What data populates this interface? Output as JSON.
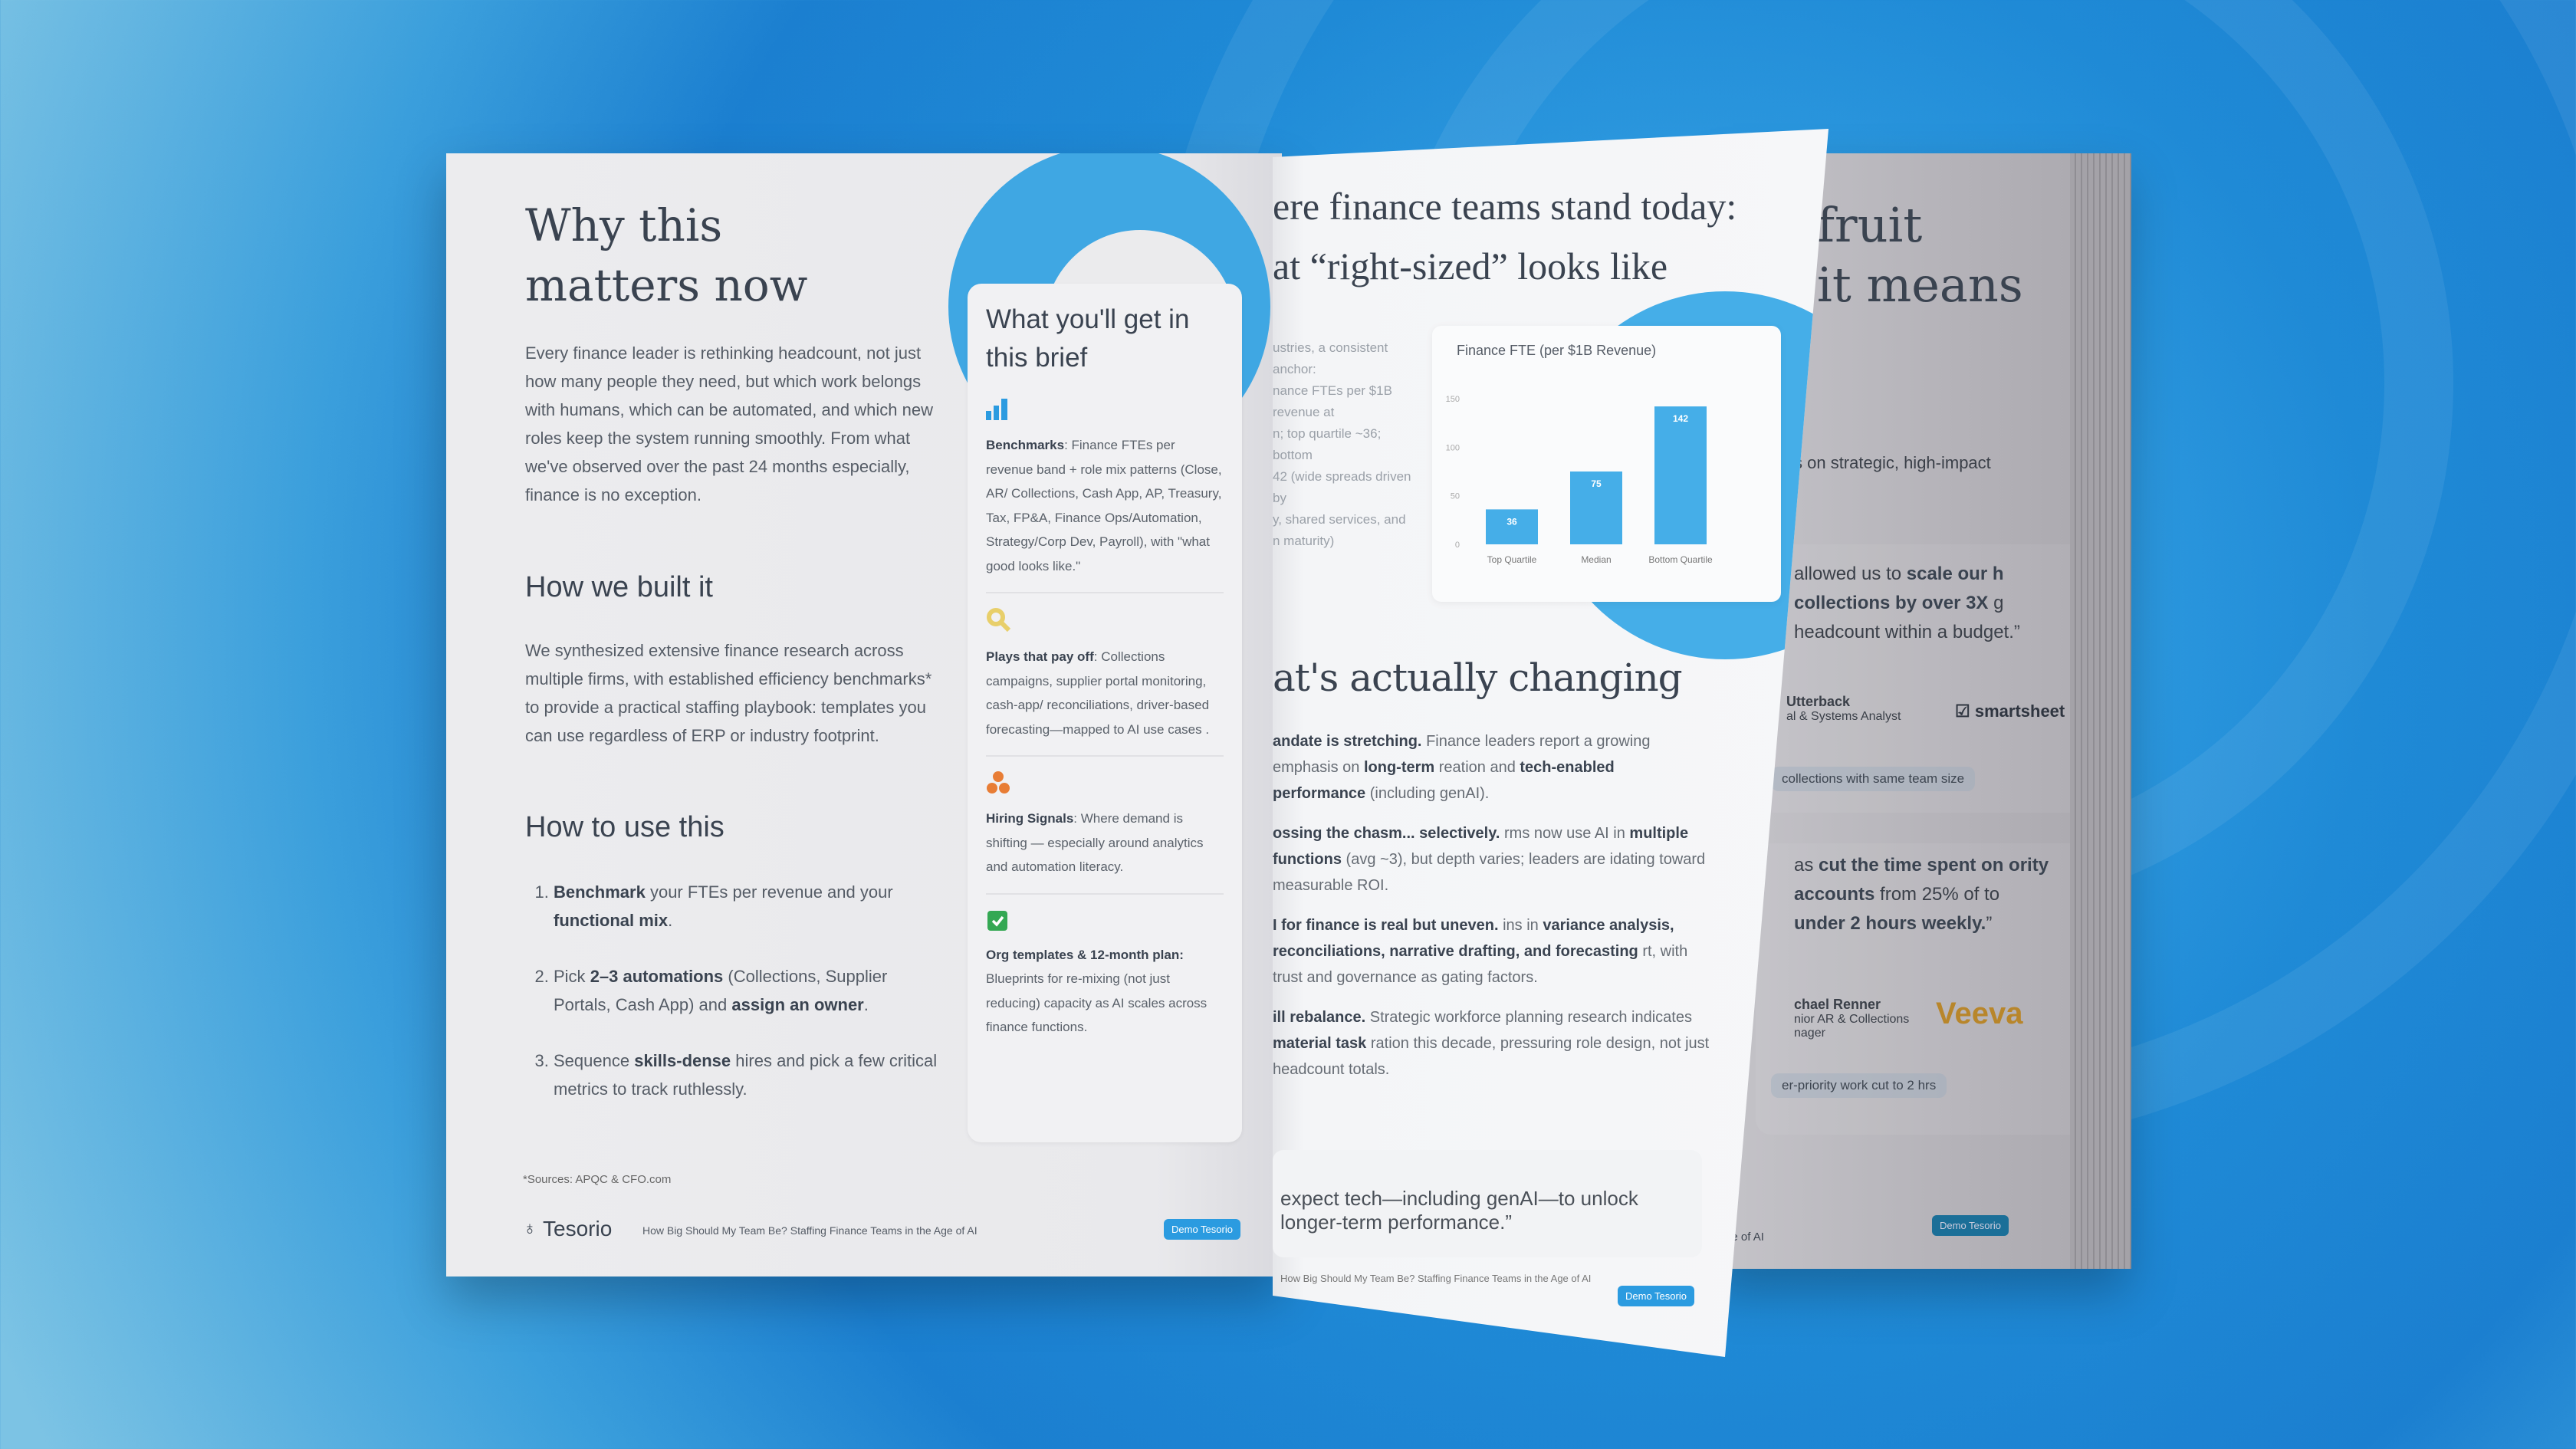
{
  "left_page": {
    "title": [
      "Why this",
      "matters now"
    ],
    "intro": "Every finance leader is rethinking headcount, not just how many people they need, but which work belongs with humans, which can be automated, and which new roles keep the system running smoothly. From what we've observed over the past 24 months especially, finance is no exception.",
    "built_heading": "How we built it",
    "built_body": "We synthesized extensive finance research across multiple firms, with established efficiency benchmarks* to provide a practical staffing playbook: templates you can use regardless of ERP or industry footprint.",
    "use_heading": "How to use this",
    "steps": [
      [
        {
          "t": "Benchmark",
          "b": true
        },
        {
          "t": " your FTEs per revenue and your "
        },
        {
          "t": "functional mix",
          "b": true
        },
        {
          "t": "."
        }
      ],
      [
        {
          "t": "Pick "
        },
        {
          "t": "2–3 automations",
          "b": true
        },
        {
          "t": " (Collections, Supplier Portals, Cash App) and "
        },
        {
          "t": "assign an owner",
          "b": true
        },
        {
          "t": "."
        }
      ],
      [
        {
          "t": "Sequence "
        },
        {
          "t": "skills-dense",
          "b": true
        },
        {
          "t": " hires and pick a few critical metrics to track ruthlessly."
        }
      ]
    ],
    "sources": "*Sources: APQC & CFO.com",
    "logo": "Tesorio",
    "footer_title": "How Big Should My Team Be? Staffing Finance Teams in the Age of AI",
    "demo_button": "Demo Tesorio"
  },
  "brief_card": {
    "title": "What you'll get in this brief",
    "items": [
      {
        "icon": "bar-chart-icon",
        "color": "#2b9be0",
        "segments": [
          {
            "t": "Benchmarks",
            "b": true
          },
          {
            "t": ": Finance FTEs per revenue band + role mix patterns (Close, AR/ Collections, Cash App, AP, Treasury, Tax, FP&A, Finance Ops/Automation, Strategy/Corp Dev, Payroll), with \"what good looks like.\""
          }
        ]
      },
      {
        "icon": "search-icon",
        "color": "#e8cf6a",
        "segments": [
          {
            "t": "Plays that pay off",
            "b": true
          },
          {
            "t": ": Collections campaigns, supplier portal monitoring, cash-app/ reconciliations, driver-based forecasting—mapped to AI use cases ."
          }
        ]
      },
      {
        "icon": "people-icon",
        "color": "#e87d35",
        "segments": [
          {
            "t": "Hiring Signals",
            "b": true
          },
          {
            "t": ": Where demand is shifting — especially around analytics and automation literacy."
          }
        ]
      },
      {
        "icon": "calendar-check-icon",
        "color": "#34a853",
        "segments": [
          {
            "t": "Org templates & 12-month plan:",
            "b": true
          },
          {
            "t": " Blueprints for re-mixing (not just reducing) capacity as AI scales across finance functions."
          }
        ]
      }
    ]
  },
  "middle_page": {
    "title": [
      "ere finance teams stand today:",
      "at “right-sized” looks like"
    ],
    "side_text": [
      "ustries, a consistent anchor:",
      "nance FTEs per $1B revenue at",
      "n; top quartile ~36; bottom",
      "42 (wide spreads driven by",
      "y, shared services, and",
      "n maturity)"
    ],
    "changing_heading": "at's actually changing",
    "paragraphs": [
      [
        {
          "t": "andate is stretching. ",
          "b": true
        },
        {
          "t": "Finance leaders report a growing emphasis on "
        },
        {
          "t": "long-term",
          "b": true
        },
        {
          "t": " reation and "
        },
        {
          "t": "tech-enabled performance",
          "b": true
        },
        {
          "t": " (including genAI)."
        }
      ],
      [
        {
          "t": "ossing the chasm... selectively.",
          "b": true
        },
        {
          "t": " rms now use AI in "
        },
        {
          "t": "multiple functions",
          "b": true
        },
        {
          "t": " (avg ~3), but depth varies; leaders are idating toward measurable ROI."
        }
      ],
      [
        {
          "t": "I for finance is real but uneven.",
          "b": true
        },
        {
          "t": " ins in "
        },
        {
          "t": "variance analysis, reconciliations, narrative drafting, and forecasting",
          "b": true
        },
        {
          "t": " rt, with trust and governance as gating factors."
        }
      ],
      [
        {
          "t": "ill rebalance.",
          "b": true
        },
        {
          "t": " Strategic workforce planning research indicates "
        },
        {
          "t": "material task",
          "b": true
        },
        {
          "t": " ration this decade, pressuring role design, not just headcount totals."
        }
      ]
    ],
    "quote": "expect tech—including genAI—to unlock longer-term performance.”",
    "footer_title": "How Big Should My Team Be? Staffing Finance Teams in the Age of AI",
    "demo_button": "Demo Tesorio"
  },
  "chart_data": {
    "type": "bar",
    "title": "Finance FTE (per $1B Revenue)",
    "categories": [
      "Top Quartile",
      "Median",
      "Bottom Quartile"
    ],
    "values": [
      36,
      75,
      142
    ],
    "yticks": [
      0,
      50,
      100,
      150
    ],
    "ylim": [
      0,
      150
    ],
    "grid": false,
    "color": "#45aee8"
  },
  "right_page": {
    "title": [
      "fruit",
      "it means"
    ],
    "intro_fragment": "s on strategic, high-impact",
    "testimonials": [
      {
        "segments": [
          {
            "t": "allowed us to "
          },
          {
            "t": "scale our h collections by over 3X",
            "b": true
          },
          {
            "t": " g headcount within a budget.”"
          }
        ],
        "name": "Utterback",
        "role": "al & Systems Analyst",
        "company": "smartsheet",
        "tag": "collections with same team size"
      },
      {
        "segments": [
          {
            "t": "as "
          },
          {
            "t": "cut the time spent on ority accounts",
            "b": true
          },
          {
            "t": " from 25% of to "
          },
          {
            "t": "under 2 hours weekly.",
            "b": true
          },
          {
            "t": "”"
          }
        ],
        "name": "chael Renner",
        "role": "nior AR & Collections nager",
        "company": "Veeva",
        "tag": "er-priority work cut to 2 hrs"
      }
    ],
    "footer_fragment": "ge of AI",
    "demo_button": "Demo Tesorio"
  },
  "colors": {
    "accent": "#2b9be0",
    "veeva": "#b8862b",
    "background": "#1f8ad6"
  }
}
